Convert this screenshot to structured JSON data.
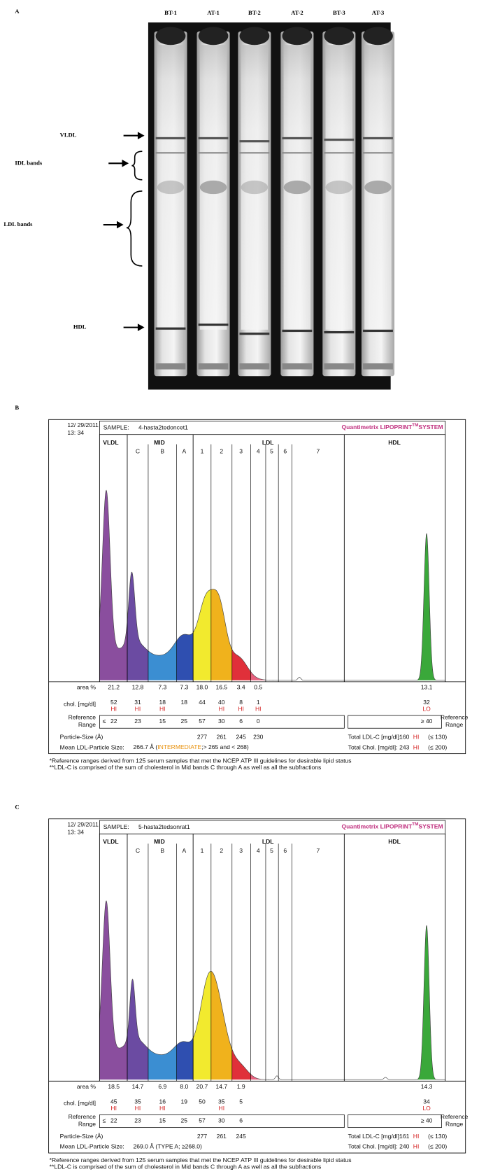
{
  "figure_a": {
    "label": "A",
    "lanes": [
      "BT-1",
      "AT-1",
      "BT-2",
      "AT-2",
      "BT-3",
      "AT-3"
    ],
    "bands": [
      "VLDL",
      "IDL bands",
      "LDL bands",
      "HDL"
    ]
  },
  "panels": [
    {
      "label": "B",
      "date": "12/ 29/2011",
      "time": "13: 34",
      "sample_label": "SAMPLE:",
      "sample": "4-hasta2tedoncet1",
      "brand": "Quantimetrix LIPOPRINT",
      "brand_sup": "TM",
      "brand_end": "SYSTEM",
      "sections": [
        "VLDL",
        "MID",
        "LDL",
        "HDL"
      ],
      "subfractions": [
        "C",
        "B",
        "A",
        "1",
        "2",
        "3",
        "4",
        "5",
        "6",
        "7"
      ],
      "row_labels": {
        "area": "area %",
        "chol": "chol. [mg/dl]",
        "ref": [
          "Reference",
          "Range"
        ],
        "particle": "Particle-Size (Å)",
        "mean": "Mean LDL-Particle Size:"
      },
      "area": [
        "21.2",
        "12.8",
        "7.3",
        "7.3",
        "18.0",
        "16.5",
        "3.4",
        "0.5",
        "13.1"
      ],
      "chol": [
        "52",
        "31",
        "18",
        "18",
        "44",
        "40",
        "8",
        "1",
        "32"
      ],
      "flags": [
        "HI",
        "HI",
        "HI",
        null,
        null,
        "HI",
        "HI",
        "HI",
        "LO"
      ],
      "ref_lead": "≤",
      "ref": [
        "22",
        "23",
        "15",
        "25",
        "57",
        "30",
        "6",
        "0"
      ],
      "ref_hdl": "≥ 40",
      "ref_right": [
        "Reference",
        "Range"
      ],
      "particle_size": [
        "277",
        "261",
        "245",
        "230"
      ],
      "mean_size": [
        {
          "text": "266.7 Å ("
        },
        {
          "text": "INTERMEDIATE",
          "color": "#e8900a"
        },
        {
          "text": ";> 265 and < 268)"
        }
      ],
      "totals": [
        {
          "label": "Total LDL-C [mg/dl]:",
          "value": "160",
          "flag": "HI",
          "range": "(≤ 130)"
        },
        {
          "label": "Total Chol. [mg/dl]:",
          "value": "243",
          "flag": "HI",
          "range": "(≤ 200)"
        }
      ],
      "footnotes": [
        "*Reference ranges derived from 125 serum samples that met the NCEP ATP III guidelines for desirable lipid status",
        "**LDL-C is comprised of the sum of cholesterol in Mid bands C through A as well as all the subfractions"
      ]
    },
    {
      "label": "C",
      "date": "12/ 29/2011",
      "time": "13: 34",
      "sample_label": "SAMPLE:",
      "sample": "5-hasta2tedsonrat1",
      "brand": "Quantimetrix LIPOPRINT",
      "brand_sup": "TM",
      "brand_end": "SYSTEM",
      "sections": [
        "VLDL",
        "MID",
        "LDL",
        "HDL"
      ],
      "subfractions": [
        "C",
        "B",
        "A",
        "1",
        "2",
        "3",
        "4",
        "5",
        "6",
        "7"
      ],
      "row_labels": {
        "area": "area %",
        "chol": "chol. [mg/dl]",
        "ref": [
          "Reference",
          "Range"
        ],
        "particle": "Particle-Size (Å)",
        "mean": "Mean LDL-Particle Size:"
      },
      "area": [
        "18.5",
        "14.7",
        "6.9",
        "8.0",
        "20.7",
        "14.7",
        "1.9",
        null,
        "14.3"
      ],
      "chol": [
        "45",
        "35",
        "16",
        "19",
        "50",
        "35",
        "5",
        null,
        "34"
      ],
      "flags": [
        "HI",
        "HI",
        "HI",
        null,
        null,
        "HI",
        null,
        null,
        "LO"
      ],
      "ref_lead": "≤",
      "ref": [
        "22",
        "23",
        "15",
        "25",
        "57",
        "30",
        "6",
        null
      ],
      "ref_hdl": "≥ 40",
      "ref_right": [
        "Reference",
        "Range"
      ],
      "particle_size": [
        "277",
        "261",
        "245"
      ],
      "mean_size": [
        {
          "text": "269.0 Å  (TYPE A; ≥268.0)"
        }
      ],
      "totals": [
        {
          "label": "Total LDL-C [mg/dl]:",
          "value": "161",
          "flag": "HI",
          "range": "(≤ 130)"
        },
        {
          "label": "Total Chol. [mg/dl]:",
          "value": "240",
          "flag": "HI",
          "range": "(≤ 200)"
        }
      ],
      "footnotes": [
        "*Reference ranges derived from 125 serum samples that met the NCEP ATP III guidelines for desirable lipid status",
        "**LDL-C is comprised of the sum of cholesterol in Mid bands C through A as well as all the subfractions"
      ]
    }
  ]
}
